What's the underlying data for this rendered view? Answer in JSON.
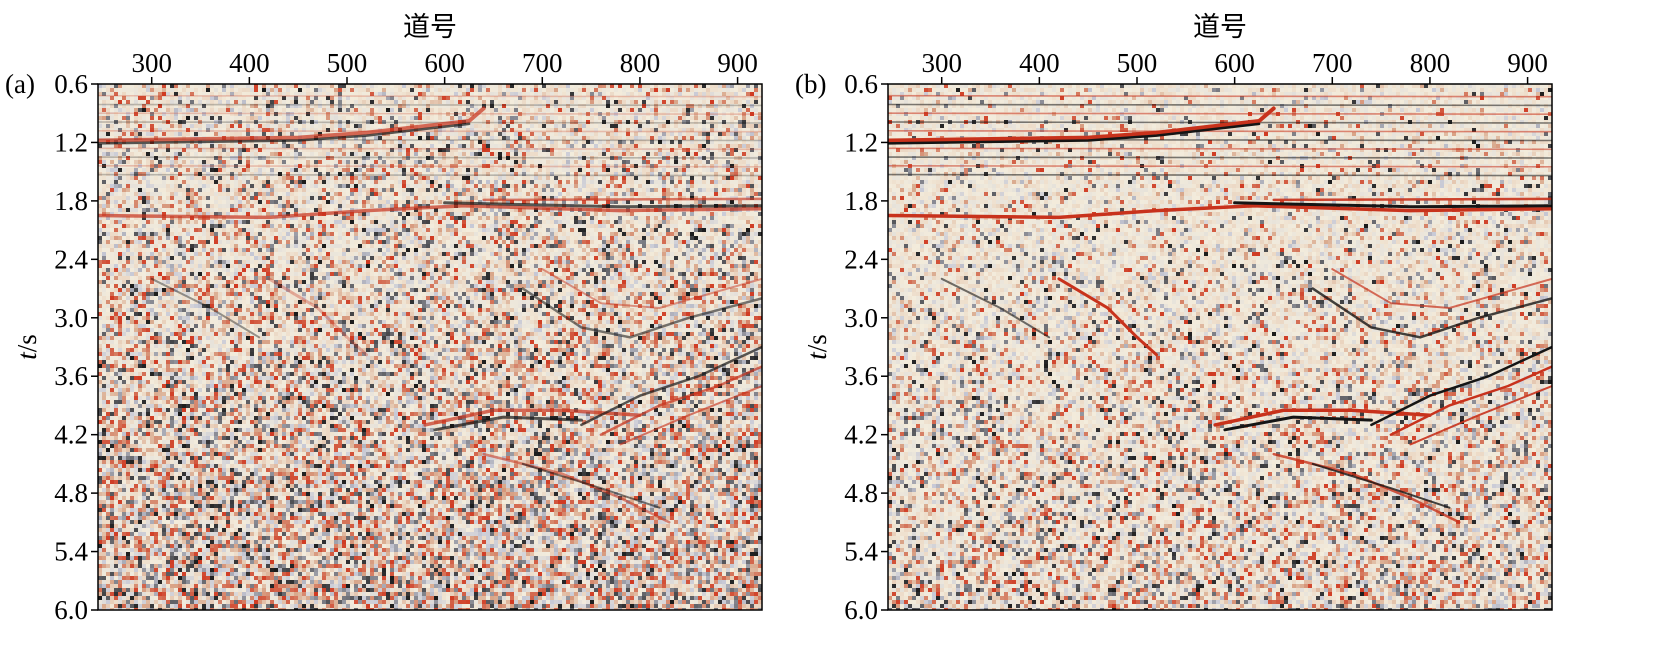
{
  "chart_data": [
    {
      "type": "heatmap",
      "panel_label": "(a)",
      "xlabel": "道号",
      "ylabel": "t/s",
      "xlim": [
        245,
        925
      ],
      "ylim": [
        0.6,
        6.0
      ],
      "y_inverted": true,
      "x_axis_position": "top",
      "x_ticks": [
        300,
        400,
        500,
        600,
        700,
        800,
        900
      ],
      "y_ticks": [
        0.6,
        1.2,
        1.8,
        2.4,
        3.0,
        3.6,
        4.2,
        4.8,
        5.4,
        6.0
      ],
      "colormap": [
        "#1a1a1a",
        "#c7c9d6",
        "#f3ecdc",
        "#d9a88c",
        "#d03a22"
      ],
      "denoised": false
    },
    {
      "type": "heatmap",
      "panel_label": "(b)",
      "xlabel": "道号",
      "ylabel": "t/s",
      "xlim": [
        245,
        925
      ],
      "ylim": [
        0.6,
        6.0
      ],
      "y_inverted": true,
      "x_axis_position": "top",
      "x_ticks": [
        300,
        400,
        500,
        600,
        700,
        800,
        900
      ],
      "y_ticks": [
        0.6,
        1.2,
        1.8,
        2.4,
        3.0,
        3.6,
        4.2,
        4.8,
        5.4,
        6.0
      ],
      "colormap": [
        "#1a1a1a",
        "#c7c9d6",
        "#f3ecdc",
        "#d9a88c",
        "#d03a22"
      ],
      "denoised": true
    }
  ]
}
